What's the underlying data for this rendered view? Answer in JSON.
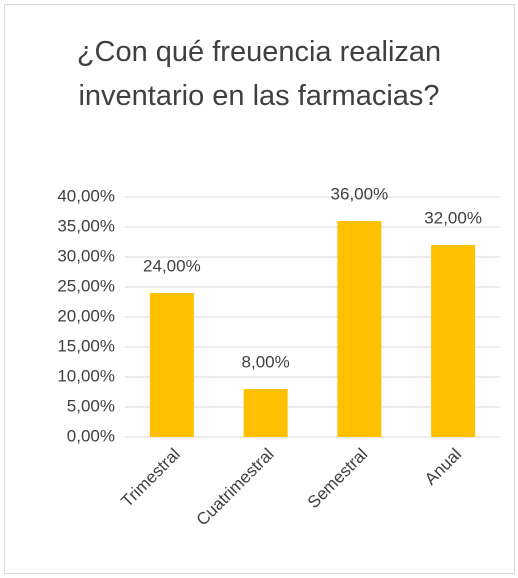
{
  "chart_data": {
    "type": "bar",
    "title": "¿Con qué freuencia realizan inventario en las farmacias?",
    "categories": [
      "Trimestral",
      "Cuatrimestral",
      "Semestral",
      "Anual"
    ],
    "values": [
      24,
      8,
      36,
      32
    ],
    "value_labels": [
      "24,00%",
      "8,00%",
      "36,00%",
      "32,00%"
    ],
    "color": "#ffc000",
    "ylim": [
      0,
      40
    ],
    "yticks": [
      {
        "value": 0,
        "label": "0,00%"
      },
      {
        "value": 5,
        "label": "5,00%"
      },
      {
        "value": 10,
        "label": "10,00%"
      },
      {
        "value": 15,
        "label": "15,00%"
      },
      {
        "value": 20,
        "label": "20,00%"
      },
      {
        "value": 25,
        "label": "25,00%"
      },
      {
        "value": 30,
        "label": "30,00%"
      },
      {
        "value": 35,
        "label": "35,00%"
      },
      {
        "value": 40,
        "label": "40,00%"
      }
    ],
    "grid": true
  }
}
